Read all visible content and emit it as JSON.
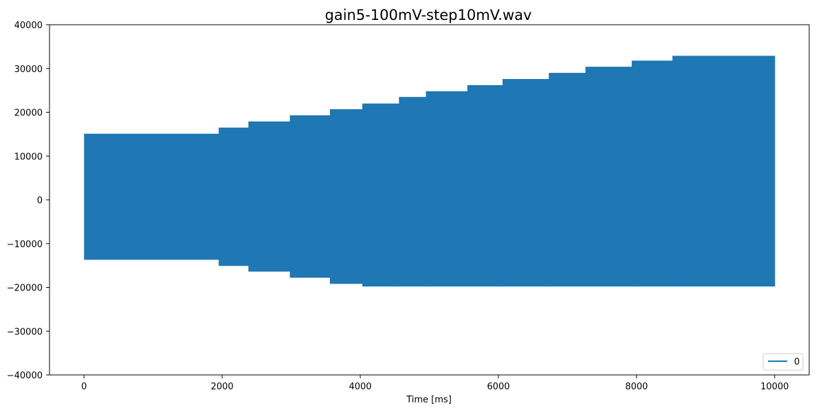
{
  "chart_data": {
    "type": "area",
    "title": "gain5-100mV-step10mV.wav",
    "xlabel": "Time [ms]",
    "ylabel": "",
    "xlim": [
      -500,
      10500
    ],
    "ylim": [
      -40000,
      40000
    ],
    "xticks": [
      0,
      2000,
      4000,
      6000,
      8000,
      10000
    ],
    "xtick_labels": [
      "0",
      "2000",
      "4000",
      "6000",
      "8000",
      "10000"
    ],
    "yticks": [
      -40000,
      -30000,
      -20000,
      -10000,
      0,
      10000,
      20000,
      30000,
      40000
    ],
    "ytick_labels": [
      "−40000",
      "−30000",
      "−20000",
      "−10000",
      "0",
      "10000",
      "20000",
      "30000",
      "40000"
    ],
    "grid": false,
    "legend_position": "bottom-right",
    "color": "#1f77b4",
    "series": [
      {
        "name": "0",
        "segments": [
          {
            "x_start": 0,
            "x_end": 1950,
            "upper": 15100,
            "lower": -13700
          },
          {
            "x_start": 1950,
            "x_end": 2380,
            "upper": 16500,
            "lower": -15100
          },
          {
            "x_start": 2380,
            "x_end": 2980,
            "upper": 17900,
            "lower": -16400
          },
          {
            "x_start": 2980,
            "x_end": 3560,
            "upper": 19300,
            "lower": -17800
          },
          {
            "x_start": 3560,
            "x_end": 4030,
            "upper": 20700,
            "lower": -19200
          },
          {
            "x_start": 4030,
            "x_end": 4560,
            "upper": 22000,
            "lower": -19800
          },
          {
            "x_start": 4560,
            "x_end": 4950,
            "upper": 23500,
            "lower": -19800
          },
          {
            "x_start": 4950,
            "x_end": 5550,
            "upper": 24800,
            "lower": -19800
          },
          {
            "x_start": 5550,
            "x_end": 6060,
            "upper": 26200,
            "lower": -19800
          },
          {
            "x_start": 6060,
            "x_end": 6730,
            "upper": 27600,
            "lower": -19800
          },
          {
            "x_start": 6730,
            "x_end": 7260,
            "upper": 29000,
            "lower": -19800
          },
          {
            "x_start": 7260,
            "x_end": 7930,
            "upper": 30400,
            "lower": -19800
          },
          {
            "x_start": 7930,
            "x_end": 8520,
            "upper": 31800,
            "lower": -19800
          },
          {
            "x_start": 8520,
            "x_end": 10000,
            "upper": 32900,
            "lower": -19800
          }
        ]
      }
    ]
  }
}
